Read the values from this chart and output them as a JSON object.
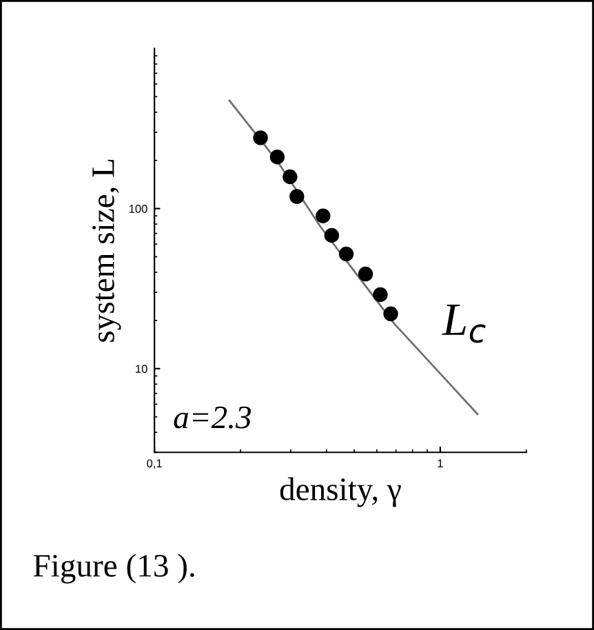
{
  "chart_data": {
    "type": "scatter",
    "xlabel": "density, γ",
    "ylabel": "system size, L",
    "log": "xy",
    "xlim": [
      0.1,
      2
    ],
    "ylim": [
      3,
      1000
    ],
    "xticks": [
      {
        "value": 0.1,
        "label": "0,1"
      },
      1
    ],
    "yticks": [
      10,
      100
    ],
    "grid": false,
    "legend": false,
    "series": [
      {
        "marker": "circle",
        "color": "#000000",
        "x": [
          0.235,
          0.269,
          0.298,
          0.315,
          0.389,
          0.417,
          0.469,
          0.548,
          0.617,
          0.671
        ],
        "values": [
          277,
          210,
          158,
          119,
          90,
          68,
          52,
          39,
          29,
          22
        ]
      },
      {
        "type": "line",
        "marker": "none",
        "name": "L$_{c}$",
        "color": "#707070",
        "x": [
          0.183,
          0.27,
          0.383,
          0.692,
          0.964,
          1.35
        ],
        "values": [
          473,
          196,
          76,
          19,
          10,
          5.2
        ]
      }
    ],
    "annotations": [
      "a=2.3",
      "Figure (13 )."
    ]
  }
}
